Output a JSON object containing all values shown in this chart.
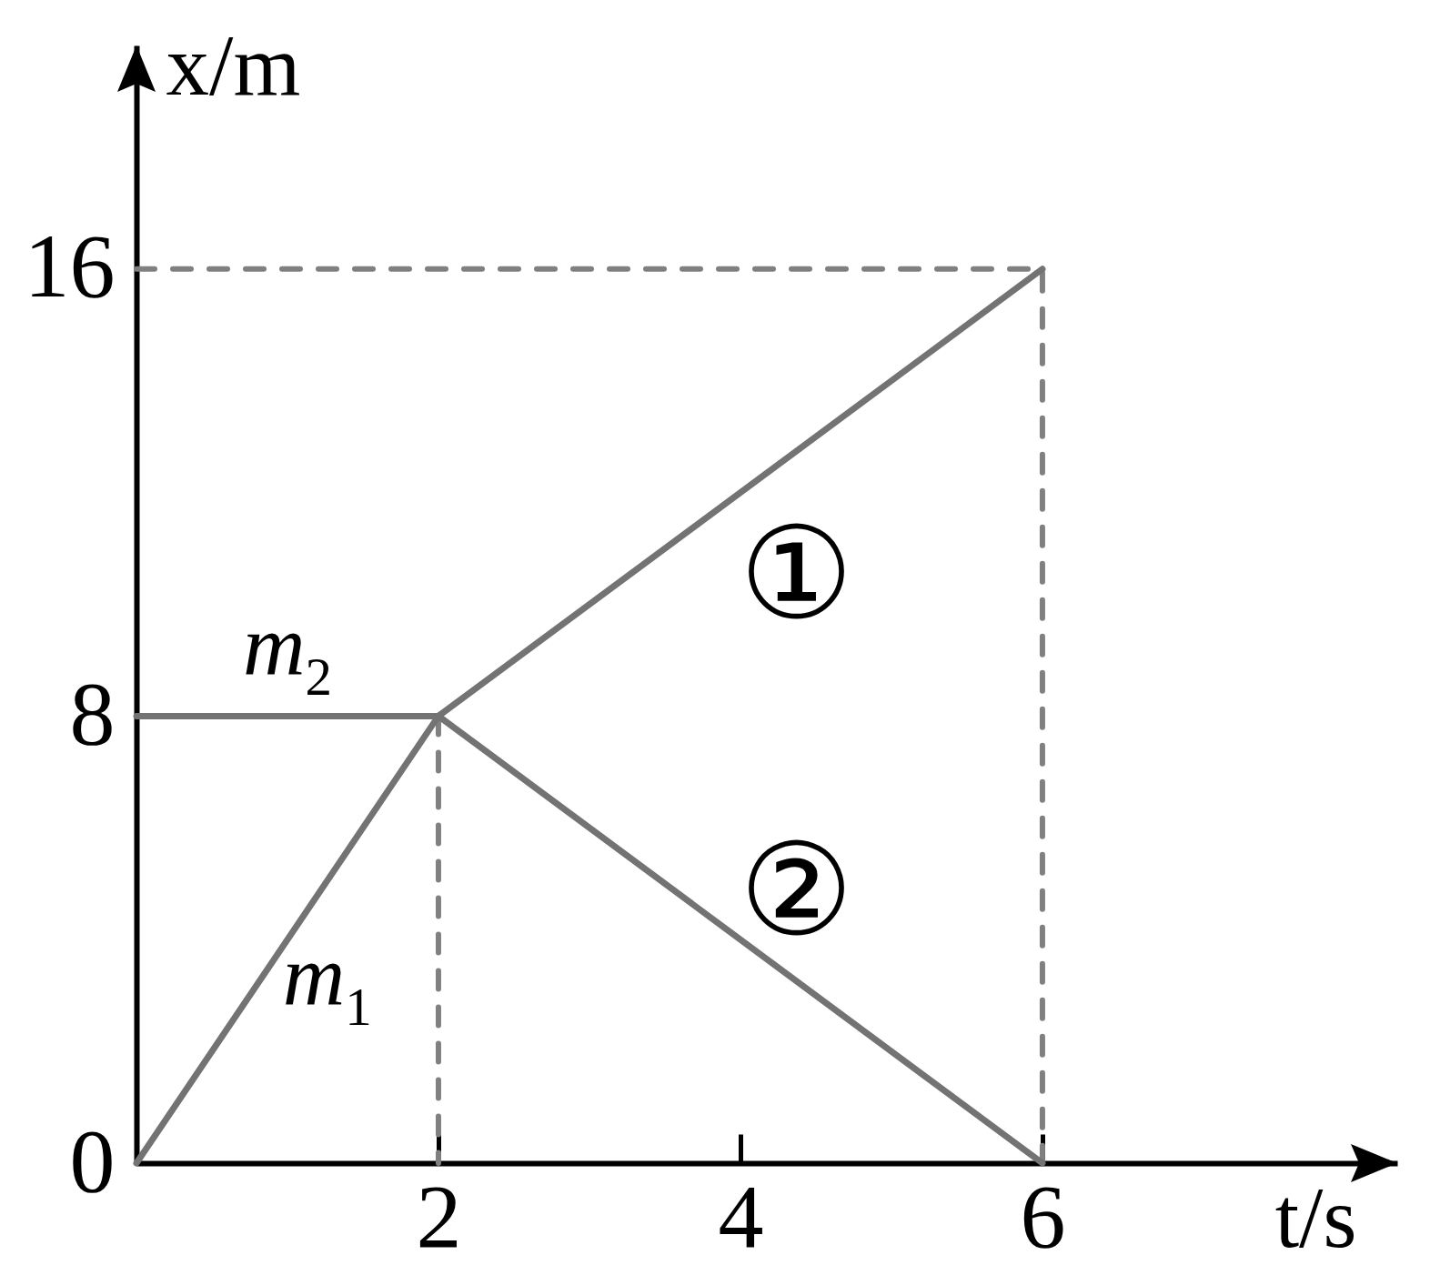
{
  "chart_data": {
    "type": "line",
    "xlabel": "t/s",
    "ylabel": "x/m",
    "xlim": [
      0,
      8.35
    ],
    "ylim": [
      0,
      20
    ],
    "xticks": [
      2,
      4,
      6
    ],
    "yticks": [
      0,
      8,
      16
    ],
    "grid": false,
    "series": [
      {
        "color": "#808080",
        "line_style": "dashed",
        "x": [
          0,
          6,
          6
        ],
        "values": [
          16,
          16,
          0
        ]
      },
      {
        "color": "#808080",
        "line_style": "dashed",
        "x": [
          2,
          2
        ],
        "values": [
          8,
          0
        ]
      },
      {
        "name": "m$_{1}$",
        "color": "#737373",
        "x": [
          0,
          2
        ],
        "values": [
          0,
          8
        ]
      },
      {
        "name": "m$_{2}$",
        "color": "#737373",
        "x": [
          0,
          2
        ],
        "values": [
          8,
          8
        ]
      },
      {
        "name": "①",
        "color": "#737373",
        "x": [
          2,
          6
        ],
        "values": [
          8,
          16
        ]
      },
      {
        "name": "②",
        "color": "#737373",
        "x": [
          2,
          6
        ],
        "values": [
          8,
          0
        ]
      }
    ]
  }
}
